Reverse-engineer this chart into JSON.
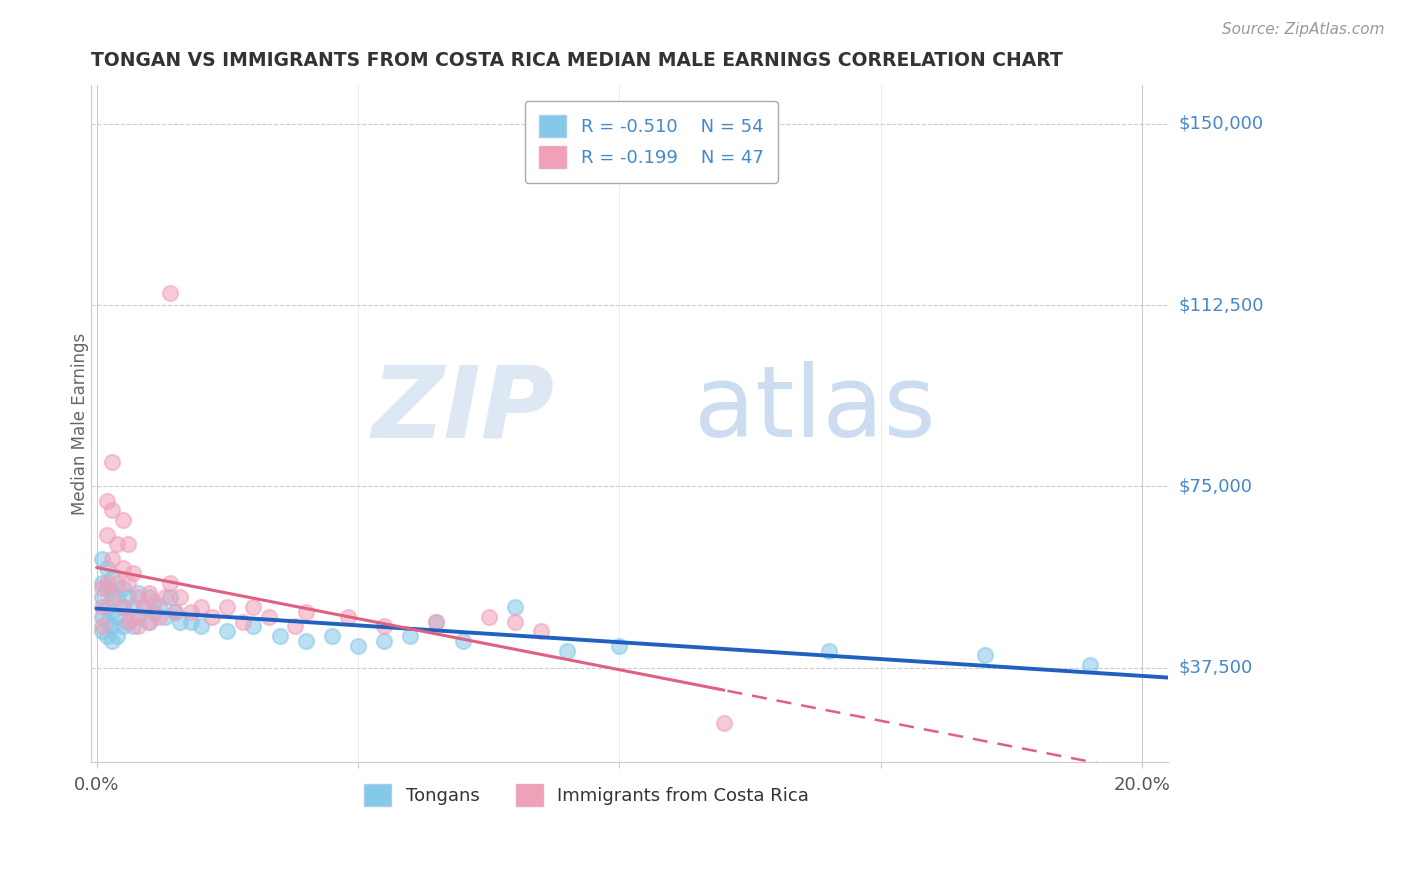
{
  "title": "TONGAN VS IMMIGRANTS FROM COSTA RICA MEDIAN MALE EARNINGS CORRELATION CHART",
  "source": "Source: ZipAtlas.com",
  "ylabel": "Median Male Earnings",
  "xlim": [
    -0.001,
    0.205
  ],
  "ylim": [
    18000,
    158000
  ],
  "yticks": [
    37500,
    75000,
    112500,
    150000
  ],
  "ytick_labels": [
    "$37,500",
    "$75,000",
    "$112,500",
    "$150,000"
  ],
  "xticks": [
    0.0,
    0.05,
    0.1,
    0.15,
    0.2
  ],
  "xtick_labels": [
    "0.0%",
    "",
    "",
    "",
    "20.0%"
  ],
  "background_color": "#ffffff",
  "series1_color": "#85c8e8",
  "series2_color": "#f0a0b8",
  "line1_color": "#2060c0",
  "line2_color": "#e06080",
  "R1": -0.51,
  "N1": 54,
  "R2": -0.199,
  "N2": 47,
  "legend_label1": "Tongans",
  "legend_label2": "Immigrants from Costa Rica",
  "title_color": "#333333",
  "axis_label_color": "#4488cc",
  "series1_x": [
    0.001,
    0.001,
    0.001,
    0.001,
    0.001,
    0.002,
    0.002,
    0.002,
    0.002,
    0.002,
    0.003,
    0.003,
    0.003,
    0.003,
    0.003,
    0.004,
    0.004,
    0.004,
    0.005,
    0.005,
    0.005,
    0.006,
    0.006,
    0.007,
    0.007,
    0.008,
    0.008,
    0.009,
    0.01,
    0.01,
    0.011,
    0.012,
    0.013,
    0.014,
    0.015,
    0.016,
    0.018,
    0.02,
    0.025,
    0.03,
    0.035,
    0.04,
    0.045,
    0.05,
    0.055,
    0.06,
    0.065,
    0.07,
    0.08,
    0.09,
    0.1,
    0.14,
    0.17,
    0.19
  ],
  "series1_y": [
    55000,
    60000,
    52000,
    48000,
    45000,
    58000,
    54000,
    50000,
    47000,
    44000,
    56000,
    53000,
    49000,
    46000,
    43000,
    52000,
    48000,
    44000,
    54000,
    50000,
    46000,
    52000,
    47000,
    50000,
    46000,
    53000,
    48000,
    50000,
    52000,
    47000,
    49000,
    50000,
    48000,
    52000,
    49000,
    47000,
    47000,
    46000,
    45000,
    46000,
    44000,
    43000,
    44000,
    42000,
    43000,
    44000,
    47000,
    43000,
    50000,
    41000,
    42000,
    41000,
    40000,
    38000
  ],
  "series2_x": [
    0.001,
    0.001,
    0.001,
    0.002,
    0.002,
    0.002,
    0.003,
    0.003,
    0.003,
    0.003,
    0.004,
    0.004,
    0.005,
    0.005,
    0.005,
    0.006,
    0.006,
    0.006,
    0.007,
    0.007,
    0.008,
    0.008,
    0.009,
    0.01,
    0.01,
    0.011,
    0.012,
    0.013,
    0.014,
    0.015,
    0.016,
    0.018,
    0.02,
    0.022,
    0.025,
    0.028,
    0.03,
    0.033,
    0.038,
    0.04,
    0.048,
    0.055,
    0.065,
    0.075,
    0.08,
    0.085,
    0.12
  ],
  "series2_y": [
    54000,
    50000,
    46000,
    72000,
    65000,
    55000,
    80000,
    70000,
    60000,
    52000,
    63000,
    55000,
    68000,
    58000,
    50000,
    63000,
    55000,
    47000,
    57000,
    48000,
    52000,
    46000,
    50000,
    53000,
    47000,
    51000,
    48000,
    52000,
    55000,
    49000,
    52000,
    49000,
    50000,
    48000,
    50000,
    47000,
    50000,
    48000,
    46000,
    49000,
    48000,
    46000,
    47000,
    48000,
    47000,
    45000,
    26000
  ],
  "series2_outlier_x": [
    0.014
  ],
  "series2_outlier_y": [
    115000
  ]
}
